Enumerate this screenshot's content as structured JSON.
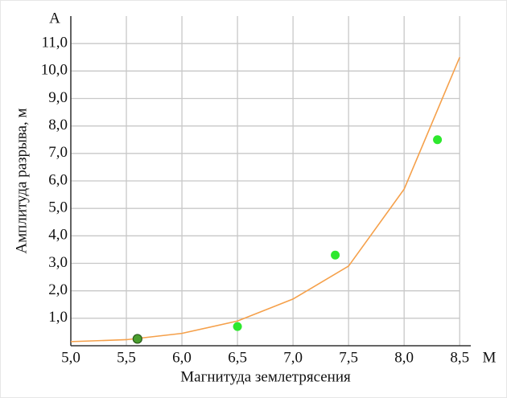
{
  "chart_data": {
    "type": "scatter",
    "xlabel": "Магнитуда землетрясения",
    "ylabel": "Амплитуда разрыва, м",
    "x_axis_name": "M",
    "y_axis_name": "A",
    "xlim": [
      5.0,
      8.6
    ],
    "ylim": [
      0,
      12
    ],
    "xticks": [
      {
        "value": 5.0,
        "label": "5,0"
      },
      {
        "value": 5.5,
        "label": "5,5"
      },
      {
        "value": 6.0,
        "label": "6,0"
      },
      {
        "value": 6.5,
        "label": "6,5"
      },
      {
        "value": 7.0,
        "label": "7,0"
      },
      {
        "value": 7.5,
        "label": "7,5"
      },
      {
        "value": 8.0,
        "label": "8,0"
      },
      {
        "value": 8.5,
        "label": "8,5"
      }
    ],
    "yticks": [
      {
        "value": 1,
        "label": "1,0"
      },
      {
        "value": 2,
        "label": "2,0"
      },
      {
        "value": 3,
        "label": "3,0"
      },
      {
        "value": 4,
        "label": "4,0"
      },
      {
        "value": 5,
        "label": "5,0"
      },
      {
        "value": 6,
        "label": "6,0"
      },
      {
        "value": 7,
        "label": "7,0"
      },
      {
        "value": 8,
        "label": "8,0"
      },
      {
        "value": 9,
        "label": "9,0"
      },
      {
        "value": 10,
        "label": "10,0"
      },
      {
        "value": 11,
        "label": "11,0"
      }
    ],
    "grid": true,
    "points": {
      "x": [
        5.6,
        6.5,
        7.38,
        8.3
      ],
      "values": [
        0.25,
        0.7,
        3.3,
        7.5
      ],
      "colors": [
        "#4a9e2e",
        "#2ee82e",
        "#2ee82e",
        "#2ee82e"
      ]
    },
    "curve": {
      "color": "#f5a04a",
      "x": [
        5.0,
        5.5,
        6.0,
        6.5,
        7.0,
        7.5,
        8.0,
        8.5
      ],
      "values": [
        0.15,
        0.22,
        0.45,
        0.9,
        1.7,
        2.9,
        5.7,
        10.5
      ]
    }
  }
}
